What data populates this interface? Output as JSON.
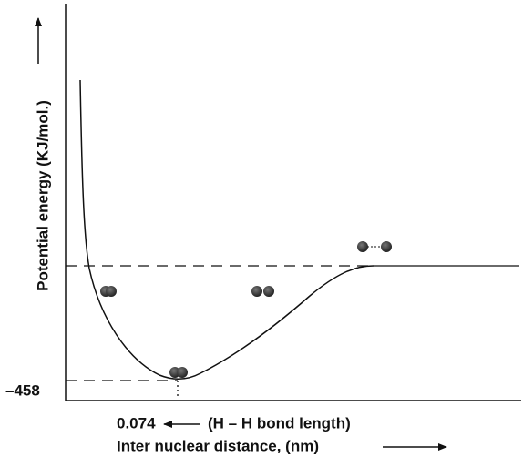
{
  "y_axis_label": "Potential energy (KJ/mol.)",
  "min_energy_label": "–458",
  "bond_length_value": "0.074",
  "bond_length_label": "(H – H bond length)",
  "x_axis_label": "Inter nuclear distance, (nm)"
}
